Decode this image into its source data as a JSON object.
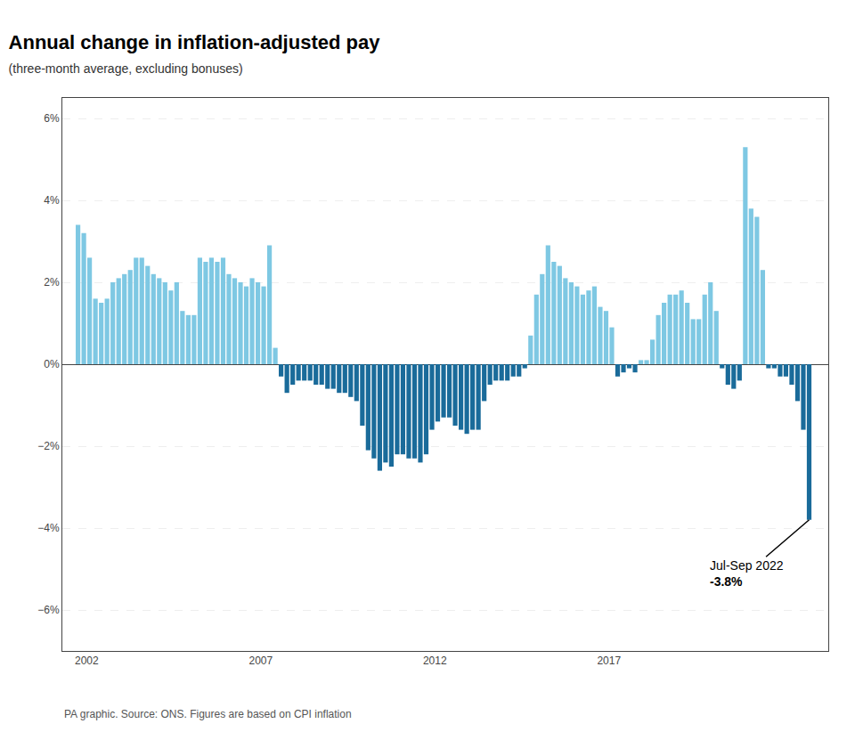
{
  "chart_data": {
    "type": "bar",
    "title": "Annual change in inflation-adjusted pay",
    "subtitle": "(three-month average, excluding bonuses)",
    "source": "PA graphic. Source: ONS. Figures are based on CPI inflation",
    "annotations": [
      "Jul-Sep 2022",
      "-3.8%"
    ],
    "x": [
      2001.75,
      2001.917,
      2002.083,
      2002.25,
      2002.417,
      2002.583,
      2002.75,
      2002.917,
      2003.083,
      2003.25,
      2003.417,
      2003.583,
      2003.75,
      2003.917,
      2004.083,
      2004.25,
      2004.417,
      2004.583,
      2004.75,
      2004.917,
      2005.083,
      2005.25,
      2005.417,
      2005.583,
      2005.75,
      2005.917,
      2006.083,
      2006.25,
      2006.417,
      2006.583,
      2006.75,
      2006.917,
      2007.083,
      2007.25,
      2007.417,
      2007.583,
      2007.75,
      2007.917,
      2008.083,
      2008.25,
      2008.417,
      2008.583,
      2008.75,
      2008.917,
      2009.083,
      2009.25,
      2009.417,
      2009.583,
      2009.75,
      2009.917,
      2010.083,
      2010.25,
      2010.417,
      2010.583,
      2010.75,
      2010.917,
      2011.083,
      2011.25,
      2011.417,
      2011.583,
      2011.75,
      2011.917,
      2012.083,
      2012.25,
      2012.417,
      2012.583,
      2012.75,
      2012.917,
      2013.083,
      2013.25,
      2013.417,
      2013.583,
      2013.75,
      2013.917,
      2014.083,
      2014.25,
      2014.417,
      2014.583,
      2014.75,
      2014.917,
      2015.083,
      2015.25,
      2015.417,
      2015.583,
      2015.75,
      2015.917,
      2016.083,
      2016.25,
      2016.417,
      2016.583,
      2016.75,
      2016.917,
      2017.083,
      2017.25,
      2017.417,
      2017.583,
      2017.75,
      2017.917,
      2018.083,
      2018.25,
      2018.417,
      2018.583,
      2018.75,
      2018.917,
      2019.083,
      2019.25,
      2019.417,
      2019.583,
      2019.75,
      2019.917,
      2020.083,
      2020.25,
      2020.417,
      2020.583,
      2020.75,
      2020.917,
      2021.083,
      2021.25,
      2021.417,
      2021.583,
      2021.75,
      2021.917,
      2022.083,
      2022.25,
      2022.417,
      2022.583,
      2022.75
    ],
    "values": [
      3.4,
      3.2,
      2.6,
      1.6,
      1.5,
      1.6,
      2.0,
      2.1,
      2.2,
      2.3,
      2.6,
      2.6,
      2.4,
      2.2,
      2.1,
      2.0,
      1.8,
      2.0,
      1.3,
      1.2,
      1.2,
      2.6,
      2.5,
      2.6,
      2.5,
      2.6,
      2.2,
      2.1,
      2.0,
      1.9,
      2.1,
      2.0,
      1.9,
      2.9,
      0.4,
      -0.3,
      -0.7,
      -0.5,
      -0.4,
      -0.4,
      -0.4,
      -0.5,
      -0.5,
      -0.6,
      -0.6,
      -0.7,
      -0.7,
      -0.8,
      -0.9,
      -1.5,
      -2.1,
      -2.3,
      -2.6,
      -2.4,
      -2.5,
      -2.2,
      -2.2,
      -2.3,
      -2.3,
      -2.4,
      -2.2,
      -1.6,
      -1.4,
      -1.3,
      -1.3,
      -1.5,
      -1.6,
      -1.7,
      -1.6,
      -1.6,
      -0.9,
      -0.5,
      -0.4,
      -0.4,
      -0.4,
      -0.3,
      -0.3,
      -0.1,
      0.7,
      1.7,
      2.2,
      2.9,
      2.5,
      2.4,
      2.1,
      2.0,
      1.9,
      1.7,
      1.8,
      1.9,
      1.4,
      1.3,
      0.9,
      -0.3,
      -0.2,
      -0.1,
      -0.2,
      0.1,
      0.1,
      0.6,
      1.2,
      1.5,
      1.7,
      1.7,
      1.8,
      1.5,
      1.1,
      1.1,
      1.7,
      2.0,
      1.3,
      -0.1,
      -0.5,
      -0.6,
      -0.4,
      5.3,
      3.8,
      3.6,
      2.3,
      -0.1,
      -0.1,
      -0.3,
      -0.3,
      -0.5,
      -0.9,
      -1.6,
      -3.8
    ],
    "colors": [
      "#7ec8e3",
      "#7ec8e3",
      "#7ec8e3",
      "#7ec8e3",
      "#7ec8e3",
      "#7ec8e3",
      "#7ec8e3",
      "#7ec8e3",
      "#7ec8e3",
      "#7ec8e3",
      "#7ec8e3",
      "#7ec8e3",
      "#7ec8e3",
      "#7ec8e3",
      "#7ec8e3",
      "#7ec8e3",
      "#7ec8e3",
      "#7ec8e3",
      "#7ec8e3",
      "#7ec8e3",
      "#7ec8e3",
      "#7ec8e3",
      "#7ec8e3",
      "#7ec8e3",
      "#7ec8e3",
      "#7ec8e3",
      "#7ec8e3",
      "#7ec8e3",
      "#7ec8e3",
      "#7ec8e3",
      "#7ec8e3",
      "#7ec8e3",
      "#7ec8e3",
      "#7ec8e3",
      "#7ec8e3",
      "#1a6b9a",
      "#1a6b9a",
      "#1a6b9a",
      "#1a6b9a",
      "#1a6b9a",
      "#1a6b9a",
      "#1a6b9a",
      "#1a6b9a",
      "#1a6b9a",
      "#1a6b9a",
      "#1a6b9a",
      "#1a6b9a",
      "#1a6b9a",
      "#1a6b9a",
      "#1a6b9a",
      "#1a6b9a",
      "#1a6b9a",
      "#1a6b9a",
      "#1a6b9a",
      "#1a6b9a",
      "#1a6b9a",
      "#1a6b9a",
      "#1a6b9a",
      "#1a6b9a",
      "#1a6b9a",
      "#1a6b9a",
      "#1a6b9a",
      "#1a6b9a",
      "#1a6b9a",
      "#1a6b9a",
      "#1a6b9a",
      "#1a6b9a",
      "#1a6b9a",
      "#1a6b9a",
      "#1a6b9a",
      "#1a6b9a",
      "#1a6b9a",
      "#1a6b9a",
      "#1a6b9a",
      "#1a6b9a",
      "#1a6b9a",
      "#1a6b9a",
      "#1a6b9a",
      "#7ec8e3",
      "#7ec8e3",
      "#7ec8e3",
      "#7ec8e3",
      "#7ec8e3",
      "#7ec8e3",
      "#7ec8e3",
      "#7ec8e3",
      "#7ec8e3",
      "#7ec8e3",
      "#7ec8e3",
      "#7ec8e3",
      "#7ec8e3",
      "#7ec8e3",
      "#7ec8e3",
      "#1a6b9a",
      "#1a6b9a",
      "#1a6b9a",
      "#1a6b9a",
      "#7ec8e3",
      "#7ec8e3",
      "#7ec8e3",
      "#7ec8e3",
      "#7ec8e3",
      "#7ec8e3",
      "#7ec8e3",
      "#7ec8e3",
      "#7ec8e3",
      "#7ec8e3",
      "#7ec8e3",
      "#7ec8e3",
      "#7ec8e3",
      "#7ec8e3",
      "#1a6b9a",
      "#1a6b9a",
      "#1a6b9a",
      "#1a6b9a",
      "#7ec8e3",
      "#7ec8e3",
      "#7ec8e3",
      "#7ec8e3",
      "#1a6b9a",
      "#1a6b9a",
      "#1a6b9a",
      "#1a6b9a",
      "#1a6b9a",
      "#1a6b9a",
      "#1a6b9a",
      "#1a6b9a"
    ],
    "xlim": [
      2001.3,
      2023.3
    ],
    "xticks": [
      2002,
      2007,
      2012,
      2017
    ],
    "ylim": [
      -7.0,
      6.5
    ],
    "yticks": [
      {
        "value": -6,
        "label": "−6%"
      },
      {
        "value": -4,
        "label": "−4%"
      },
      {
        "value": -2,
        "label": "−2%"
      },
      {
        "value": 0,
        "label": "0%"
      },
      {
        "value": 2,
        "label": "2%"
      },
      {
        "value": 4,
        "label": "4%"
      },
      {
        "value": 6,
        "label": "6%"
      }
    ],
    "grid": true
  }
}
